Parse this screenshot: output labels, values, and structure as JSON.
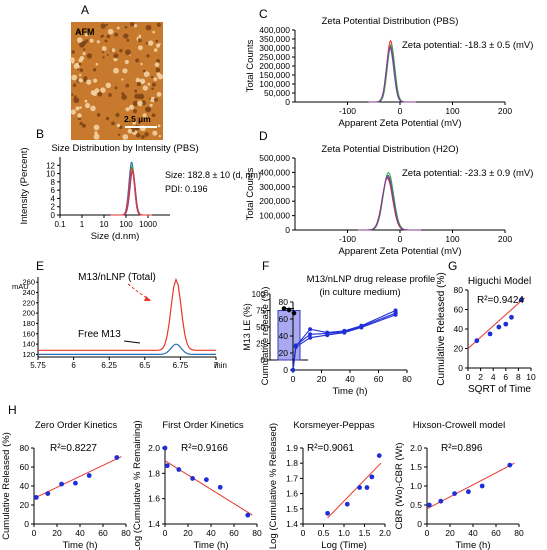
{
  "panels": {
    "A": {
      "letter": "A",
      "label": "AFM",
      "scale_bar": "2.5 µm"
    },
    "B": {
      "letter": "B"
    },
    "C": {
      "letter": "C"
    },
    "D": {
      "letter": "D"
    },
    "E": {
      "letter": "E"
    },
    "F": {
      "letter": "F"
    },
    "G": {
      "letter": "G"
    },
    "H": {
      "letter": "H"
    }
  },
  "colors": {
    "red": "#e8362b",
    "blue": "#2c6fb7",
    "green": "#3aa845",
    "purple": "#8a3b8f",
    "dot": "#1f2fd6",
    "bar": "#a9a9f0"
  },
  "chart_data": [
    {
      "id": "B",
      "type": "line",
      "title": "Size Distribution by Intensity (PBS)",
      "xlabel": "Size (d.nm)",
      "ylabel": "Intensity (Percent)",
      "xscale": "log",
      "xlim": [
        0.1,
        10000
      ],
      "ylim": [
        0,
        14
      ],
      "x_ticks": [
        "0.1",
        "1",
        "10",
        "100",
        "1000"
      ],
      "y_ticks": [
        "0",
        "2",
        "4",
        "6",
        "8",
        "10",
        "12"
      ],
      "annotations": [
        "Size: 182.8 ± 10 (d, nm)",
        "PDI: 0.196"
      ],
      "series": [
        {
          "color": "#2c6fb7",
          "peak_x": 180,
          "peak_y": 12.8
        },
        {
          "color": "#3aa845",
          "peak_x": 190,
          "peak_y": 11.8
        },
        {
          "color": "#8a3b8f",
          "peak_x": 200,
          "peak_y": 10.6
        },
        {
          "color": "#e8362b",
          "peak_x": 185,
          "peak_y": 11.2
        }
      ]
    },
    {
      "id": "C",
      "type": "line",
      "title": "Zeta Potential Distribution (PBS)",
      "xlabel": "Apparent Zeta Potential (mV)",
      "ylabel": "Total Counts",
      "xlim": [
        -200,
        200
      ],
      "ylim": [
        0,
        400000
      ],
      "x_ticks": [
        "-100",
        "0",
        "100",
        "200"
      ],
      "y_ticks": [
        "0",
        "50,000",
        "100,000",
        "150,000",
        "200,000",
        "250,000",
        "300,000",
        "350,000",
        "400,000"
      ],
      "annotations": [
        "Zeta potential: -18.3 ± 0.5 (mV)"
      ],
      "series": [
        {
          "color": "#e8362b",
          "peak_x": -18,
          "peak_y": 340000
        },
        {
          "color": "#3aa845",
          "peak_x": -17,
          "peak_y": 320000
        },
        {
          "color": "#2c6fb7",
          "peak_x": -19,
          "peak_y": 300000
        },
        {
          "color": "#8a3b8f",
          "peak_x": -18.5,
          "peak_y": 310000
        }
      ]
    },
    {
      "id": "D",
      "type": "line",
      "title": "Zeta Potential Distribution (H2O)",
      "xlabel": "Apparent Zeta Potential (mV)",
      "ylabel": "Total Counts",
      "xlim": [
        -200,
        200
      ],
      "ylim": [
        0,
        500000
      ],
      "x_ticks": [
        "-100",
        "0",
        "100",
        "200"
      ],
      "y_ticks": [
        "0",
        "100,000",
        "200,000",
        "300,000",
        "400,000",
        "500,000"
      ],
      "annotations": [
        "Zeta potential: -23.3 ± 0.9 (mV)"
      ],
      "series": [
        {
          "color": "#e8362b",
          "peak_x": -24,
          "peak_y": 360000
        },
        {
          "color": "#3aa845",
          "peak_x": -22,
          "peak_y": 400000
        },
        {
          "color": "#2c6fb7",
          "peak_x": -23,
          "peak_y": 380000
        },
        {
          "color": "#8a3b8f",
          "peak_x": -23.5,
          "peak_y": 370000
        }
      ]
    },
    {
      "id": "E1",
      "type": "line",
      "xlabel": "min",
      "ylabel": "mAU",
      "xlim": [
        5.75,
        7.0
      ],
      "ylim": [
        115,
        270
      ],
      "x_ticks": [
        "5.75",
        "6",
        "6.25",
        "6.5",
        "6.75",
        "7"
      ],
      "y_ticks": [
        "120",
        "140",
        "160",
        "180",
        "200",
        "220",
        "240",
        "260"
      ],
      "annotations": [
        "M13/nLNP (Total)",
        "Free M13"
      ],
      "series": [
        {
          "name": "M13/nLNP (Total)",
          "color": "#e8362b",
          "baseline": 128,
          "peak_x": 6.72,
          "peak_y": 265
        },
        {
          "name": "Free M13",
          "color": "#2c6fb7",
          "baseline": 120,
          "peak_x": 6.72,
          "peak_y": 140
        }
      ]
    },
    {
      "id": "E2",
      "type": "bar",
      "ylabel": "M13 LE (%)",
      "ylim": [
        0,
        100
      ],
      "y_ticks": [
        "0",
        "25",
        "50",
        "75",
        "100"
      ],
      "values": [
        75
      ],
      "error": 3,
      "points": [
        78,
        76,
        71
      ]
    },
    {
      "id": "F",
      "type": "line",
      "title": "M13/nLNP drug release profile",
      "subtitle": "(in culture medium)",
      "xlabel": "Time (h)",
      "ylabel": "Cumulative release (%)",
      "xlim": [
        0,
        80
      ],
      "ylim": [
        0,
        80
      ],
      "x_ticks": [
        "0",
        "20",
        "40",
        "60",
        "80"
      ],
      "y_ticks": [
        "0",
        "20",
        "40",
        "60",
        "80"
      ],
      "series": [
        {
          "x": [
            0,
            2,
            12,
            24,
            36,
            48,
            72
          ],
          "y": [
            0,
            28,
            48,
            44,
            46,
            52,
            70
          ]
        },
        {
          "x": [
            0,
            2,
            12,
            24,
            36,
            48,
            72
          ],
          "y": [
            0,
            29,
            42,
            43,
            45,
            51,
            67
          ]
        },
        {
          "x": [
            0,
            2,
            12,
            24,
            36,
            48,
            72
          ],
          "y": [
            0,
            27,
            38,
            41,
            44,
            50,
            65
          ]
        }
      ]
    },
    {
      "id": "G",
      "type": "scatter",
      "title": "Higuchi Model",
      "xlabel": "SQRT of Time",
      "ylabel": "Cumulative Released (%)",
      "xlim": [
        0,
        10
      ],
      "ylim": [
        0,
        80
      ],
      "x_ticks": [
        "0",
        "2",
        "4",
        "6",
        "8",
        "10"
      ],
      "y_ticks": [
        "0",
        "20",
        "40",
        "60",
        "80"
      ],
      "annotations": [
        "R²=0.9424"
      ],
      "x": [
        1.4,
        3.5,
        4.9,
        6.0,
        6.9,
        8.5
      ],
      "y": [
        28,
        35,
        42,
        45,
        52,
        70
      ],
      "fit": [
        [
          0,
          20
        ],
        [
          9,
          72
        ]
      ]
    },
    {
      "id": "H1",
      "type": "scatter",
      "title": "Zero Order Kinetics",
      "xlabel": "Time (h)",
      "ylabel": "Cumulative Released (%)",
      "xlim": [
        0,
        80
      ],
      "ylim": [
        0,
        80
      ],
      "x_ticks": [
        "0",
        "20",
        "40",
        "60",
        "80"
      ],
      "y_ticks": [
        "0",
        "20",
        "40",
        "60",
        "80"
      ],
      "annotations": [
        "R²=0.8227"
      ],
      "x": [
        2,
        12,
        24,
        36,
        48,
        72
      ],
      "y": [
        28,
        32,
        42,
        43,
        51,
        70
      ],
      "fit": [
        [
          0,
          27
        ],
        [
          76,
          71
        ]
      ]
    },
    {
      "id": "H2",
      "type": "scatter",
      "title": "First Order Kinetics",
      "xlabel": "Time (h)",
      "ylabel": "Log (Cumulative % Remaining)",
      "xlim": [
        0,
        80
      ],
      "ylim": [
        1.4,
        2.0
      ],
      "x_ticks": [
        "0",
        "20",
        "40",
        "60",
        "80"
      ],
      "y_ticks": [
        "1.4",
        "1.6",
        "1.8",
        "2.0"
      ],
      "annotations": [
        "R²=0.9166"
      ],
      "x": [
        0,
        2,
        12,
        24,
        36,
        48,
        72
      ],
      "y": [
        2.0,
        1.86,
        1.83,
        1.76,
        1.75,
        1.69,
        1.47
      ],
      "fit": [
        [
          0,
          1.9
        ],
        [
          76,
          1.47
        ]
      ]
    },
    {
      "id": "H3",
      "type": "scatter",
      "title": "Korsmeyer-Peppas",
      "xlabel": "Log (Time)",
      "ylabel": "Log (Cumulative % Released)",
      "xlim": [
        0,
        2.0
      ],
      "ylim": [
        1.4,
        1.9
      ],
      "x_ticks": [
        "0",
        "0.5",
        "1.0",
        "1.5",
        "2.0"
      ],
      "y_ticks": [
        "1.4",
        "1.5",
        "1.6",
        "1.7",
        "1.8",
        "1.9"
      ],
      "annotations": [
        "R²=0.9061"
      ],
      "x": [
        0.6,
        1.08,
        1.38,
        1.56,
        1.68,
        1.86
      ],
      "y": [
        1.47,
        1.53,
        1.64,
        1.64,
        1.71,
        1.85
      ],
      "fit": [
        [
          0.6,
          1.44
        ],
        [
          1.9,
          1.8
        ]
      ]
    },
    {
      "id": "H4",
      "type": "scatter",
      "title": "Hixson-Crowell model",
      "xlabel": "Time (h)",
      "ylabel": "CBR (Wo)-CBR (Wt)",
      "xlim": [
        0,
        80
      ],
      "ylim": [
        0,
        2.0
      ],
      "x_ticks": [
        "0",
        "20",
        "40",
        "60",
        "80"
      ],
      "y_ticks": [
        "0",
        "0.5",
        "1.0",
        "1.5",
        "2.0"
      ],
      "annotations": [
        "R²=0.896"
      ],
      "x": [
        2,
        12,
        24,
        36,
        48,
        72
      ],
      "y": [
        0.5,
        0.6,
        0.8,
        0.85,
        1.0,
        1.55
      ],
      "fit": [
        [
          0,
          0.4
        ],
        [
          76,
          1.6
        ]
      ]
    }
  ]
}
